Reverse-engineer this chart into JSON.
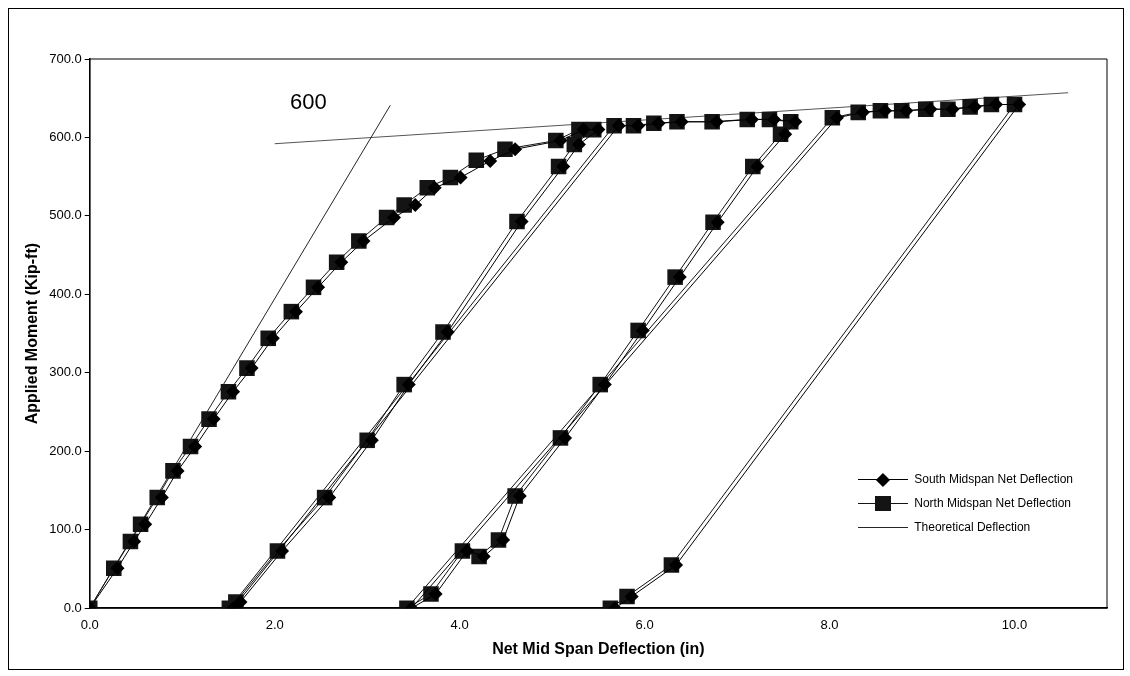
{
  "chart_data": {
    "type": "line",
    "xlabel": "Net Mid Span Deflection (in)",
    "ylabel": "Applied Moment (Kip-ft)",
    "xlim": [
      0,
      11
    ],
    "xticks": [
      {
        "value": 0,
        "label": "0.0"
      },
      {
        "value": 2,
        "label": "2.0"
      },
      {
        "value": 4,
        "label": "4.0"
      },
      {
        "value": 6,
        "label": "6.0"
      },
      {
        "value": 8,
        "label": "8.0"
      },
      {
        "value": 10,
        "label": "10.0"
      }
    ],
    "ylim": [
      0,
      700
    ],
    "yticks": [
      {
        "value": 0,
        "label": "0.0"
      },
      {
        "value": 100,
        "label": "100.0"
      },
      {
        "value": 200,
        "label": "200.0"
      },
      {
        "value": 300,
        "label": "300.0"
      },
      {
        "value": 400,
        "label": "400.0"
      },
      {
        "value": 500,
        "label": "500.0"
      },
      {
        "value": 600,
        "label": "600.0"
      },
      {
        "value": 700,
        "label": "700.0"
      }
    ],
    "grid": false,
    "legend": "bottom right",
    "annotations": [
      "600"
    ],
    "series": [
      {
        "name": "South Midspan Net Deflection",
        "color": "#000000",
        "marker": "diamond",
        "x": [
          0,
          0.3,
          0.48,
          0.6,
          0.78,
          0.95,
          1.14,
          1.34,
          1.55,
          1.75,
          1.98,
          2.23,
          2.47,
          2.72,
          2.96,
          3.29,
          3.52,
          3.73,
          4.01,
          4.33,
          4.6,
          5.09,
          5.34,
          5.5,
          5.29,
          5.12,
          4.67,
          3.87,
          3.45,
          3.05,
          2.59,
          2.08,
          1.63,
          1.55,
          5.72,
          5.93,
          6.15,
          6.4,
          6.78,
          7.16,
          7.4,
          7.63,
          7.52,
          7.22,
          6.79,
          6.38,
          5.98,
          5.57,
          5.14,
          4.65,
          4.47,
          4.26,
          4.08,
          3.74,
          3.48,
          8.08,
          8.36,
          8.6,
          8.83,
          9.09,
          9.33,
          9.57,
          9.8,
          10.05,
          6.34,
          5.86,
          5.68
        ],
        "values": [
          0,
          51,
          85,
          107,
          141,
          175,
          206,
          241,
          276,
          306,
          344,
          378,
          409,
          441,
          468,
          498,
          514,
          536,
          549,
          570,
          585,
          596,
          610,
          610,
          591,
          563,
          493,
          352,
          285,
          214,
          141,
          73,
          8,
          0,
          615,
          615,
          618,
          620,
          620,
          623,
          623,
          620,
          604,
          563,
          492,
          422,
          354,
          285,
          217,
          143,
          87,
          66,
          73,
          18,
          0,
          625,
          632,
          634,
          634,
          636,
          636,
          639,
          642,
          642,
          55,
          15,
          0
        ]
      },
      {
        "name": "North Midspan Net Deflection",
        "color": "#141414",
        "marker": "square",
        "x": [
          0,
          0.26,
          0.44,
          0.55,
          0.73,
          0.9,
          1.09,
          1.29,
          1.5,
          1.7,
          1.93,
          2.18,
          2.42,
          2.67,
          2.91,
          3.21,
          3.4,
          3.65,
          3.9,
          4.18,
          4.49,
          5.04,
          5.29,
          5.45,
          5.24,
          5.07,
          4.62,
          3.82,
          3.4,
          3,
          2.54,
          2.03,
          1.58,
          1.51,
          5.67,
          5.88,
          6.1,
          6.35,
          6.73,
          7.11,
          7.35,
          7.58,
          7.47,
          7.17,
          6.74,
          6.33,
          5.93,
          5.52,
          5.09,
          4.6,
          4.42,
          4.21,
          4.03,
          3.69,
          3.43,
          8.03,
          8.31,
          8.55,
          8.78,
          9.04,
          9.28,
          9.52,
          9.75,
          10,
          6.29,
          5.81,
          5.63
        ],
        "values": [
          0,
          51,
          85,
          107,
          141,
          175,
          206,
          241,
          276,
          306,
          344,
          378,
          409,
          441,
          468,
          498,
          514,
          536,
          549,
          571,
          585,
          596,
          610,
          610,
          591,
          563,
          493,
          352,
          285,
          214,
          141,
          73,
          8,
          0,
          615,
          615,
          618,
          620,
          620,
          623,
          623,
          620,
          604,
          563,
          492,
          422,
          354,
          285,
          217,
          143,
          87,
          66,
          73,
          18,
          0,
          625,
          632,
          634,
          634,
          636,
          636,
          639,
          642,
          642,
          55,
          15,
          0
        ]
      },
      {
        "name": "Theoretical Deflection",
        "color": "#262626",
        "marker": "none",
        "x": [
          0,
          3.25
        ],
        "values": [
          0,
          641
        ]
      },
      {
        "color": "#555555",
        "marker": "none",
        "x": [
          2,
          10.58
        ],
        "values": [
          592,
          657
        ]
      }
    ]
  }
}
